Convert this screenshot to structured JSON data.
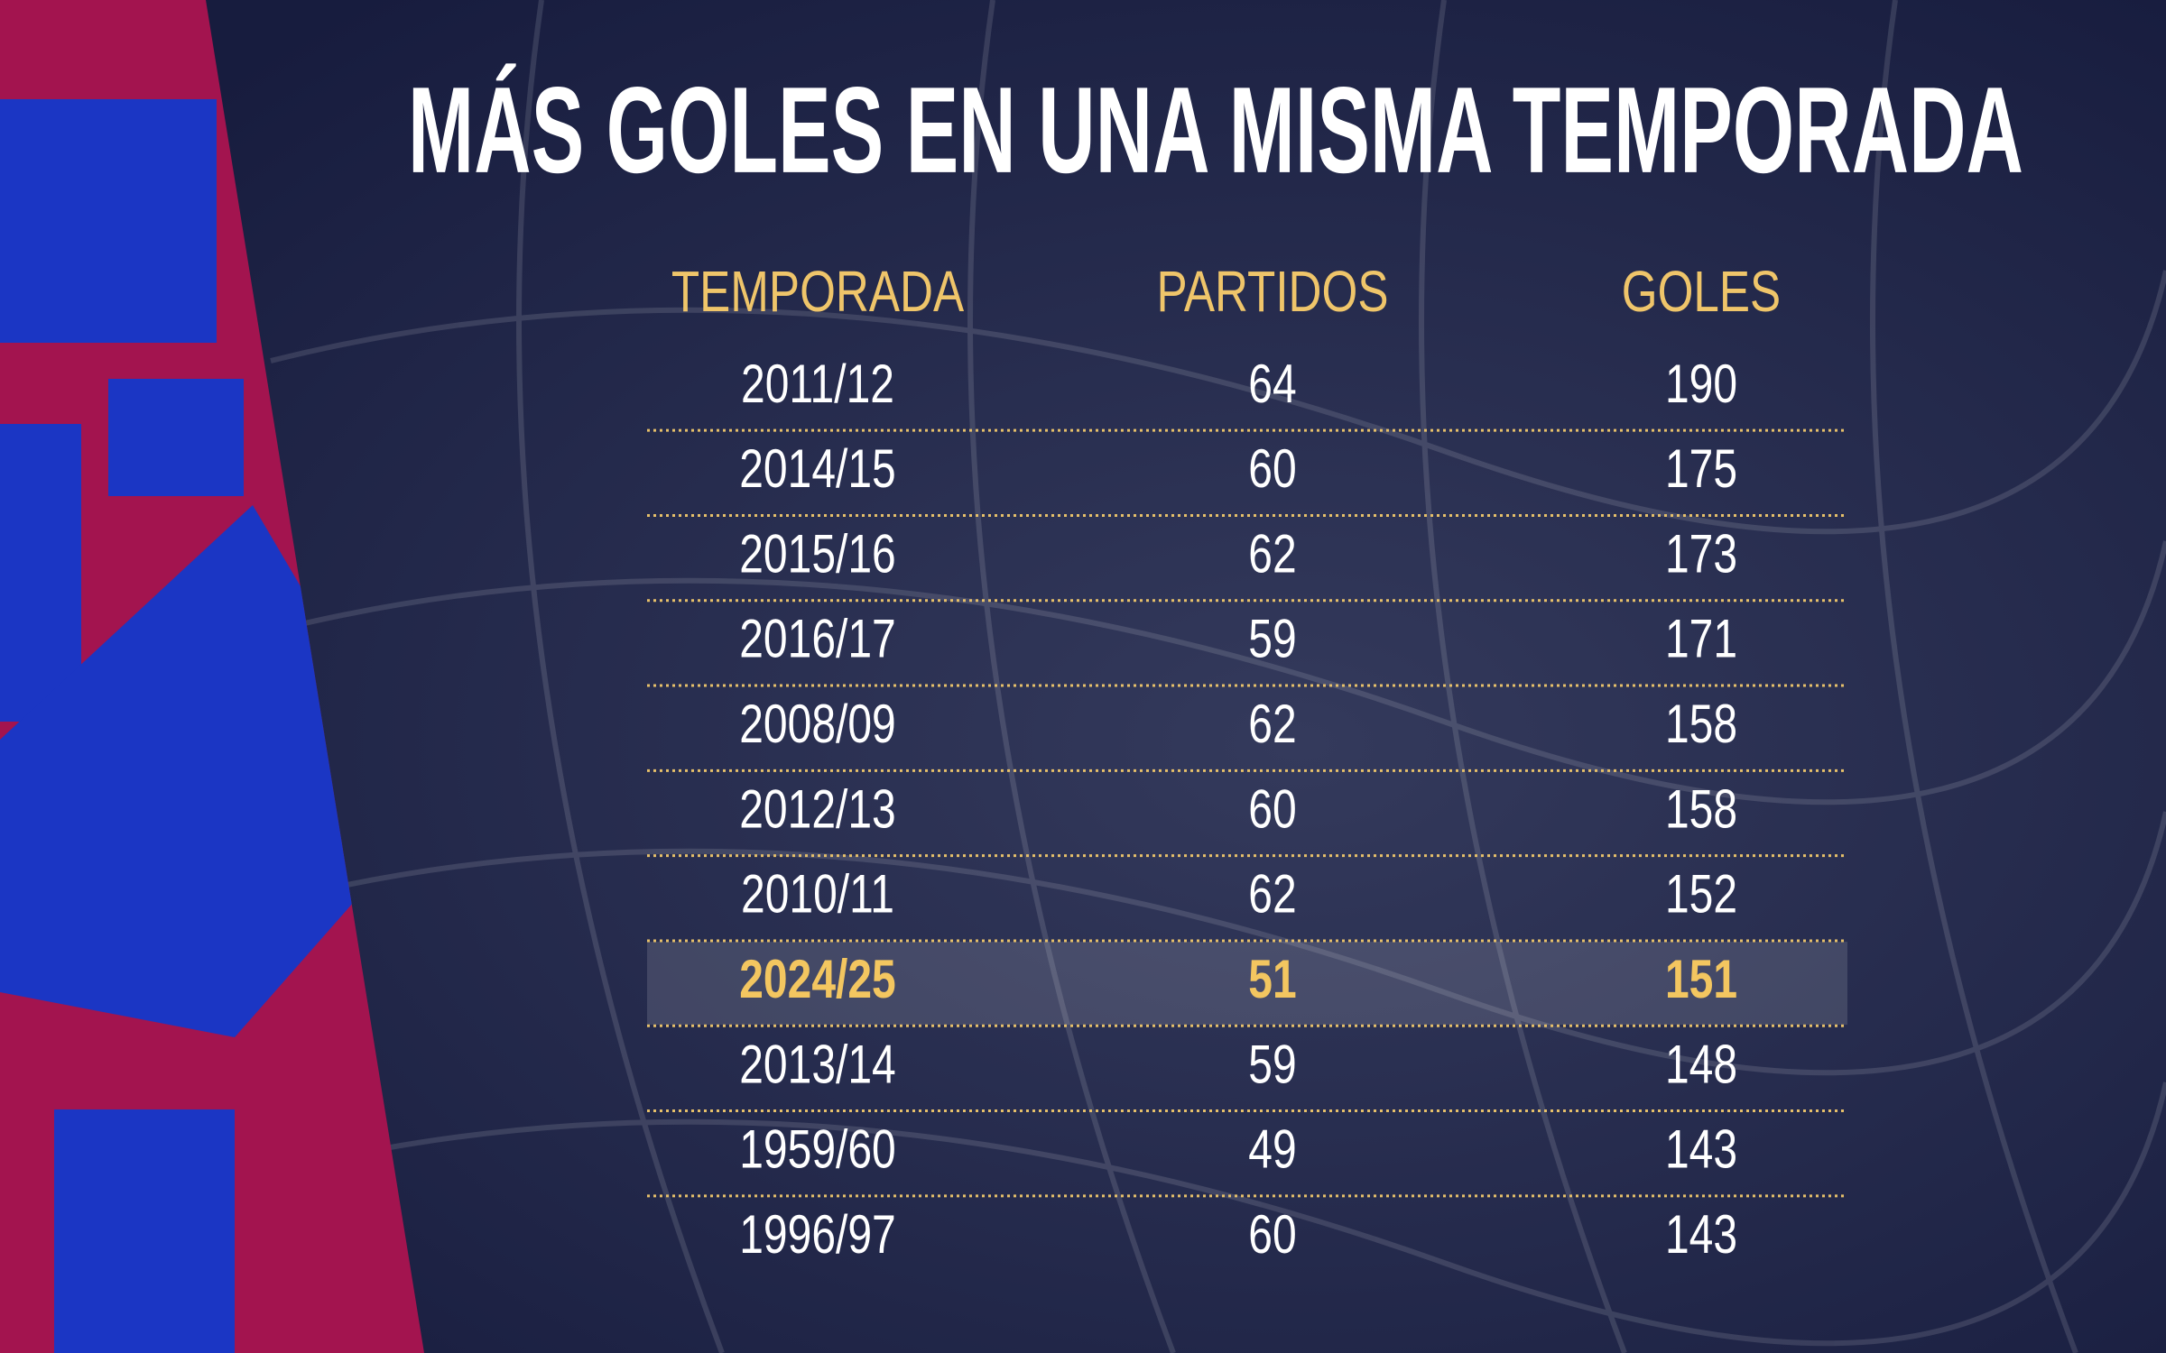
{
  "title": "MÁS GOLES EN UNA MISMA TEMPORADA",
  "table": {
    "headers": [
      "TEMPORADA",
      "PARTIDOS",
      "GOLES"
    ],
    "rows": [
      [
        "2011/12",
        64,
        190
      ],
      [
        "2014/15",
        60,
        175
      ],
      [
        "2015/16",
        62,
        173
      ],
      [
        "2016/17",
        59,
        171
      ],
      [
        "2008/09",
        62,
        158
      ],
      [
        "2012/13",
        60,
        158
      ],
      [
        "2010/11",
        62,
        152
      ],
      [
        "2024/25",
        51,
        151
      ],
      [
        "2013/14",
        59,
        148
      ],
      [
        "1959/60",
        49,
        143
      ],
      [
        "1996/97",
        60,
        143
      ]
    ],
    "highlight_row": 7
  }
}
